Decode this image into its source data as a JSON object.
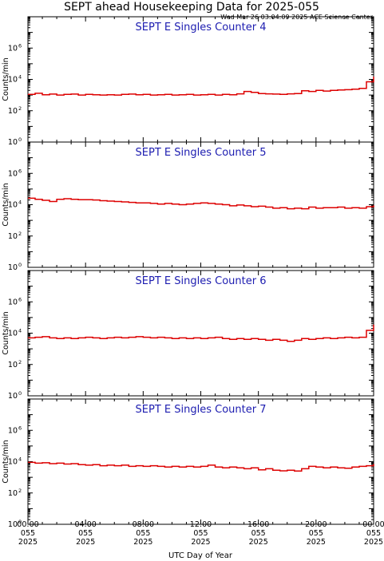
{
  "header": {
    "title": "SEPT ahead Housekeeping Data for 2025-055",
    "subtitle": "Wed Mar 26 03:04:09 2025 ACE Science Center"
  },
  "colors": {
    "series": "#dd0000",
    "panel_title": "#1c1cb0",
    "axis": "#000000"
  },
  "chart_data": [
    {
      "type": "line",
      "title": "SEPT E Singles Counter 4",
      "ylabel": "Counts/min",
      "yscale": "log",
      "ylim": [
        1,
        100000000
      ],
      "xlim": [
        0,
        24
      ],
      "y_ticks": [
        {
          "base": "10",
          "exp": "0",
          "value": 1
        },
        {
          "base": "10",
          "exp": "2",
          "value": 100
        },
        {
          "base": "10",
          "exp": "4",
          "value": 10000
        },
        {
          "base": "10",
          "exp": "6",
          "value": 1000000
        }
      ],
      "series": [
        {
          "x": [
            0,
            0.5,
            1,
            1.5,
            2,
            2.5,
            3,
            3.5,
            4,
            4.5,
            5,
            5.5,
            6,
            6.5,
            7,
            7.5,
            8,
            8.5,
            9,
            9.5,
            10,
            10.5,
            11,
            11.5,
            12,
            12.5,
            13,
            13.5,
            14,
            14.5,
            15,
            15.5,
            16,
            16.5,
            17,
            17.5,
            18,
            18.5,
            19,
            19.5,
            20,
            20.5,
            21,
            21.5,
            22,
            22.5,
            23,
            23.5,
            24
          ],
          "y": [
            1100,
            1300,
            1050,
            1150,
            1000,
            1100,
            1150,
            1000,
            1100,
            1050,
            1000,
            1050,
            1000,
            1100,
            1150,
            1050,
            1100,
            1000,
            1050,
            1100,
            1000,
            1050,
            1100,
            1000,
            1050,
            1100,
            1000,
            1100,
            1050,
            1200,
            1700,
            1500,
            1250,
            1200,
            1150,
            1100,
            1200,
            1250,
            1900,
            1700,
            2000,
            1800,
            2000,
            2100,
            2200,
            2400,
            2700,
            7000,
            15000
          ]
        }
      ]
    },
    {
      "type": "line",
      "title": "SEPT E Singles Counter 5",
      "ylabel": "Counts/min",
      "yscale": "log",
      "ylim": [
        1,
        100000000
      ],
      "xlim": [
        0,
        24
      ],
      "y_ticks": [
        {
          "base": "10",
          "exp": "0",
          "value": 1
        },
        {
          "base": "10",
          "exp": "2",
          "value": 100
        },
        {
          "base": "10",
          "exp": "4",
          "value": 10000
        },
        {
          "base": "10",
          "exp": "6",
          "value": 1000000
        }
      ],
      "series": [
        {
          "x": [
            0,
            0.5,
            1,
            1.5,
            2,
            2.5,
            3,
            3.5,
            4,
            4.5,
            5,
            5.5,
            6,
            6.5,
            7,
            7.5,
            8,
            8.5,
            9,
            9.5,
            10,
            10.5,
            11,
            11.5,
            12,
            12.5,
            13,
            13.5,
            14,
            14.5,
            15,
            15.5,
            16,
            16.5,
            17,
            17.5,
            18,
            18.5,
            19,
            19.5,
            20,
            20.5,
            21,
            21.5,
            22,
            22.5,
            23,
            23.5,
            24
          ],
          "y": [
            26000,
            22000,
            19000,
            16000,
            22000,
            24000,
            22000,
            21000,
            21000,
            20000,
            18000,
            17000,
            16000,
            15000,
            14000,
            13000,
            13000,
            12000,
            11000,
            12000,
            11000,
            10000,
            11000,
            12000,
            13000,
            12000,
            11000,
            10000,
            8500,
            9500,
            8500,
            7500,
            8000,
            7000,
            6000,
            6500,
            5500,
            6000,
            5500,
            7000,
            6000,
            6500,
            6500,
            7000,
            6000,
            6500,
            6000,
            7500,
            9000
          ]
        }
      ]
    },
    {
      "type": "line",
      "title": "SEPT E Singles Counter 6",
      "ylabel": "Counts/min",
      "yscale": "log",
      "ylim": [
        1,
        100000000
      ],
      "xlim": [
        0,
        24
      ],
      "y_ticks": [
        {
          "base": "10",
          "exp": "0",
          "value": 1
        },
        {
          "base": "10",
          "exp": "2",
          "value": 100
        },
        {
          "base": "10",
          "exp": "4",
          "value": 10000
        },
        {
          "base": "10",
          "exp": "6",
          "value": 1000000
        }
      ],
      "series": [
        {
          "x": [
            0,
            0.5,
            1,
            1.5,
            2,
            2.5,
            3,
            3.5,
            4,
            4.5,
            5,
            5.5,
            6,
            6.5,
            7,
            7.5,
            8,
            8.5,
            9,
            9.5,
            10,
            10.5,
            11,
            11.5,
            12,
            12.5,
            13,
            13.5,
            14,
            14.5,
            15,
            15.5,
            16,
            16.5,
            17,
            17.5,
            18,
            18.5,
            19,
            19.5,
            20,
            20.5,
            21,
            21.5,
            22,
            22.5,
            23,
            23.5,
            24
          ],
          "y": [
            5000,
            5500,
            6000,
            5000,
            4500,
            5000,
            4500,
            5000,
            5500,
            5000,
            4500,
            5000,
            5500,
            5000,
            5500,
            6000,
            5500,
            5000,
            5500,
            5000,
            4500,
            5000,
            4500,
            5000,
            4500,
            5000,
            5500,
            4500,
            4000,
            4500,
            4000,
            4500,
            4000,
            3500,
            4000,
            3500,
            3000,
            3500,
            4500,
            4000,
            4500,
            5000,
            4500,
            5000,
            5500,
            5000,
            5500,
            15000,
            35000
          ]
        }
      ]
    },
    {
      "type": "line",
      "title": "SEPT E Singles Counter 7",
      "ylabel": "Counts/min",
      "yscale": "log",
      "ylim": [
        1,
        100000000
      ],
      "xlim": [
        0,
        24
      ],
      "y_ticks": [
        {
          "base": "10",
          "exp": "0",
          "value": 1
        },
        {
          "base": "10",
          "exp": "2",
          "value": 100
        },
        {
          "base": "10",
          "exp": "4",
          "value": 10000
        },
        {
          "base": "10",
          "exp": "6",
          "value": 1000000
        }
      ],
      "series": [
        {
          "x": [
            0,
            0.5,
            1,
            1.5,
            2,
            2.5,
            3,
            3.5,
            4,
            4.5,
            5,
            5.5,
            6,
            6.5,
            7,
            7.5,
            8,
            8.5,
            9,
            9.5,
            10,
            10.5,
            11,
            11.5,
            12,
            12.5,
            13,
            13.5,
            14,
            14.5,
            15,
            15.5,
            16,
            16.5,
            17,
            17.5,
            18,
            18.5,
            19,
            19.5,
            20,
            20.5,
            21,
            21.5,
            22,
            22.5,
            23,
            23.5,
            24
          ],
          "y": [
            9000,
            8000,
            8500,
            7500,
            8000,
            7000,
            7500,
            6500,
            6000,
            6500,
            5500,
            6000,
            5500,
            6000,
            5000,
            5500,
            5000,
            5500,
            5000,
            4500,
            5000,
            4500,
            5000,
            4500,
            5000,
            6000,
            4500,
            4000,
            4500,
            4000,
            3500,
            4000,
            3000,
            3500,
            2800,
            2600,
            2800,
            2500,
            3500,
            5000,
            4500,
            4000,
            4500,
            4000,
            3800,
            4500,
            5000,
            5500,
            7000
          ]
        }
      ]
    }
  ],
  "x_axis": {
    "label": "UTC Day of Year",
    "ticks": [
      {
        "value": 0,
        "time": "00:00",
        "day": "055",
        "year": "2025"
      },
      {
        "value": 4,
        "time": "04:00",
        "day": "055",
        "year": "2025"
      },
      {
        "value": 8,
        "time": "08:00",
        "day": "055",
        "year": "2025"
      },
      {
        "value": 12,
        "time": "12:00",
        "day": "055",
        "year": "2025"
      },
      {
        "value": 16,
        "time": "16:00",
        "day": "055",
        "year": "2025"
      },
      {
        "value": 20,
        "time": "20:00",
        "day": "055",
        "year": "2025"
      },
      {
        "value": 24,
        "time": "00:00",
        "day": "055",
        "year": "2025"
      }
    ],
    "minor_step": 1
  }
}
